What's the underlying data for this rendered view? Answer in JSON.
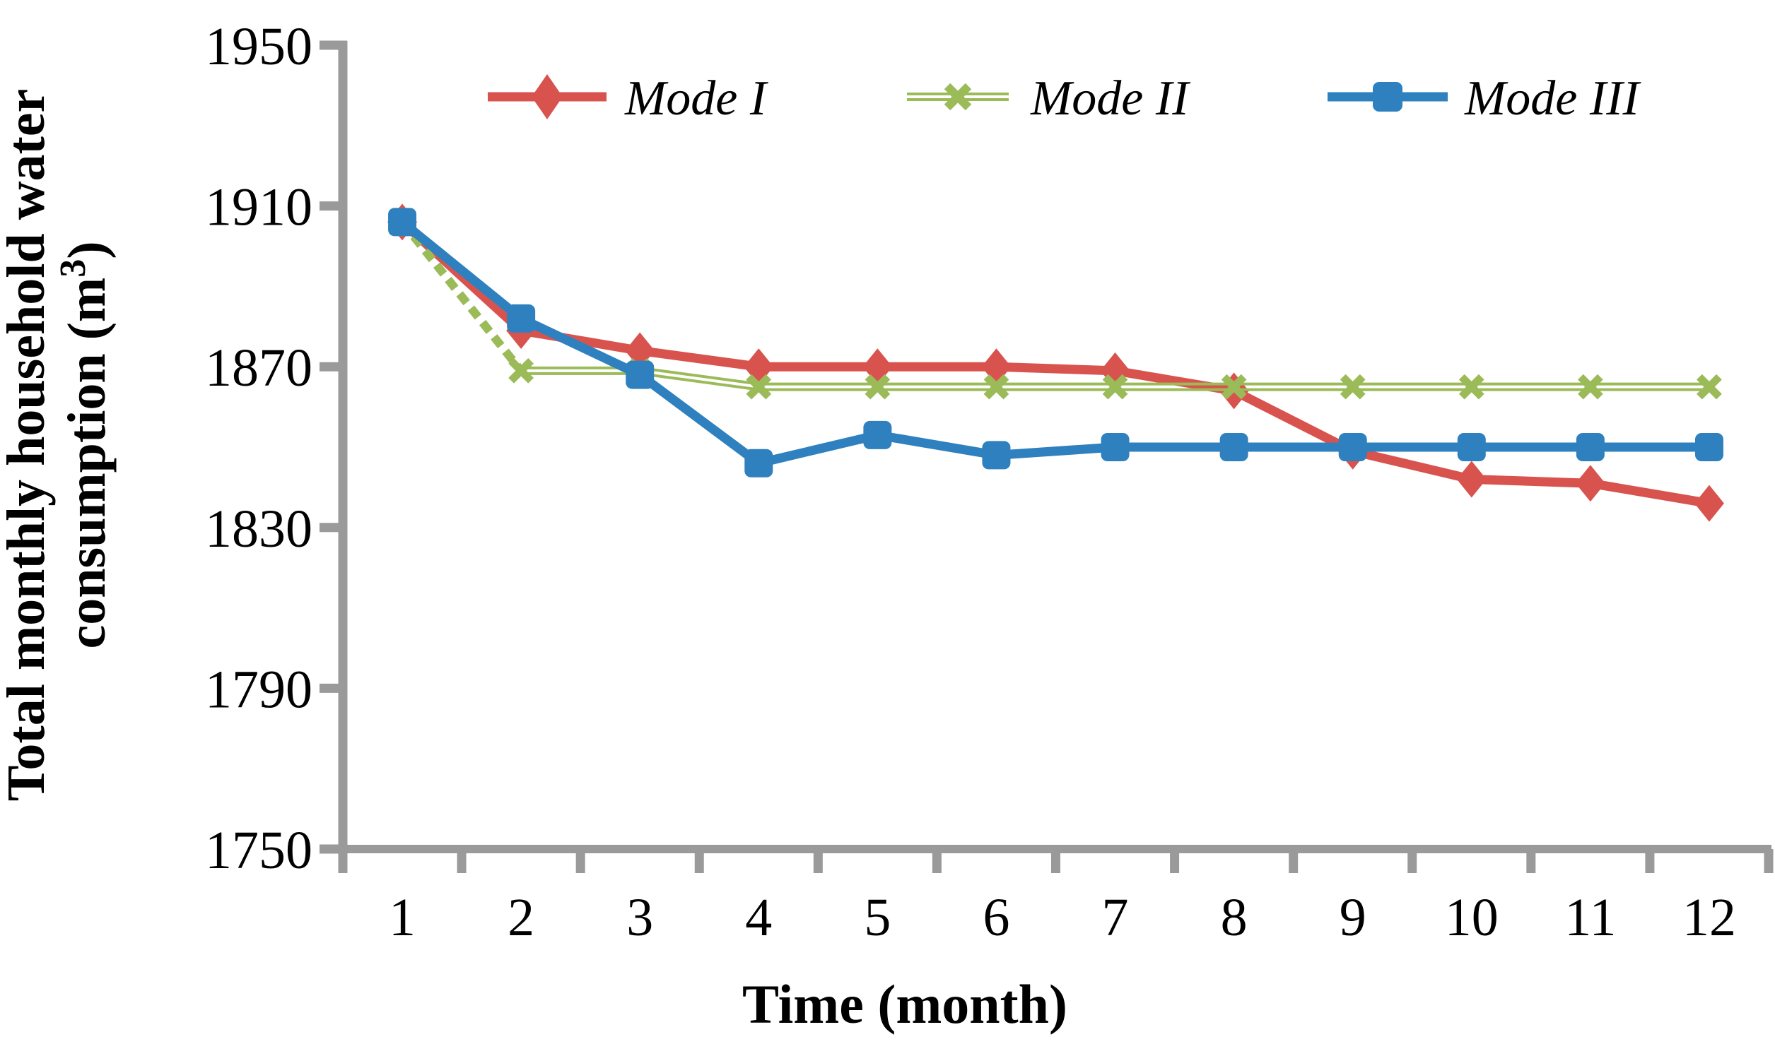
{
  "chart_data": {
    "type": "line",
    "title": "",
    "xlabel": "Time (month)",
    "ylabel": "Total monthly household water consumption (m³)",
    "ylabel_lines": [
      "Total monthly household water",
      "consumption (m³)"
    ],
    "ylabel_line2_parts": [
      "consumption (m",
      "3",
      ")"
    ],
    "x": [
      1,
      2,
      3,
      4,
      5,
      6,
      7,
      8,
      9,
      10,
      11,
      12
    ],
    "ylim": [
      1750,
      1950
    ],
    "yticks": [
      1750,
      1790,
      1830,
      1870,
      1910,
      1950
    ],
    "grid": false,
    "legend_position": "top-inside",
    "series": [
      {
        "name": "Mode I",
        "color": "#d9534e",
        "marker": "diamond",
        "line_style": "solid",
        "values": [
          1906,
          1879,
          1874,
          1870,
          1870,
          1870,
          1869,
          1864,
          1849,
          1842,
          1841,
          1836
        ]
      },
      {
        "name": "Mode II",
        "color": "#9bbb59",
        "marker": "x",
        "line_style": "dashed-then-double",
        "values": [
          1906,
          1869,
          1869,
          1865,
          1865,
          1865,
          1865,
          1865,
          1865,
          1865,
          1865,
          1865
        ]
      },
      {
        "name": "Mode III",
        "color": "#2e81be",
        "marker": "square",
        "line_style": "solid",
        "values": [
          1906,
          1882,
          1868,
          1846,
          1853,
          1848,
          1850,
          1850,
          1850,
          1850,
          1850,
          1850
        ]
      }
    ],
    "colors": {
      "axis": "#9a9a9a",
      "text": "#000000",
      "background": "#ffffff"
    }
  }
}
